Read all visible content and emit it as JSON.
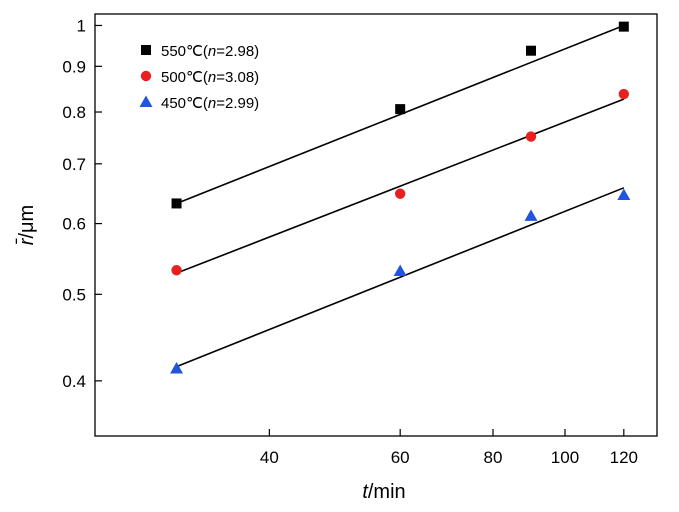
{
  "chart_data": {
    "type": "scatter",
    "x_scale": "log",
    "y_scale": "log",
    "xlabel": {
      "italic": "t",
      "rest": "/min"
    },
    "ylabel": {
      "italic": "r̄",
      "rest": "/μm"
    },
    "xlim": [
      23.3,
      133
    ],
    "ylim": [
      0.347,
      1.03
    ],
    "x_ticks": [
      40,
      60,
      80,
      100,
      120
    ],
    "x_tick_labels": [
      "40",
      "60",
      "80",
      "100",
      "120"
    ],
    "y_ticks": [
      0.4,
      0.5,
      0.6,
      0.7,
      0.8,
      0.9,
      1.0
    ],
    "y_tick_labels": [
      "0.4",
      "0.5",
      "0.6",
      "0.7",
      "0.8",
      "0.9",
      "1"
    ],
    "grid": false,
    "legend_position": "top-left",
    "series": [
      {
        "name": "550℃(n=2.98)",
        "legend_prefix": "550℃(",
        "legend_italic": "n",
        "legend_suffix": "=2.98)",
        "marker": "square",
        "color": "#000000",
        "x": [
          30,
          60,
          90,
          120
        ],
        "y": [
          0.632,
          0.806,
          0.937,
          0.997
        ],
        "fit": {
          "x": [
            30,
            120
          ],
          "y": [
            0.632,
            1.0
          ]
        }
      },
      {
        "name": "500℃(n=3.08)",
        "legend_prefix": "500℃(",
        "legend_italic": "n",
        "legend_suffix": "=3.08)",
        "marker": "circle",
        "color": "#e82020",
        "x": [
          30,
          60,
          90,
          120
        ],
        "y": [
          0.532,
          0.648,
          0.751,
          0.838
        ],
        "fit": {
          "x": [
            30,
            120
          ],
          "y": [
            0.528,
            0.827
          ]
        }
      },
      {
        "name": "450℃(n=2.99)",
        "legend_prefix": "450℃(",
        "legend_italic": "n",
        "legend_suffix": "=2.99)",
        "marker": "triangle",
        "color": "#2255dd",
        "x": [
          30,
          60,
          90,
          120
        ],
        "y": [
          0.413,
          0.531,
          0.612,
          0.646
        ],
        "fit": {
          "x": [
            30,
            120
          ],
          "y": [
            0.415,
            0.658
          ]
        }
      }
    ]
  }
}
